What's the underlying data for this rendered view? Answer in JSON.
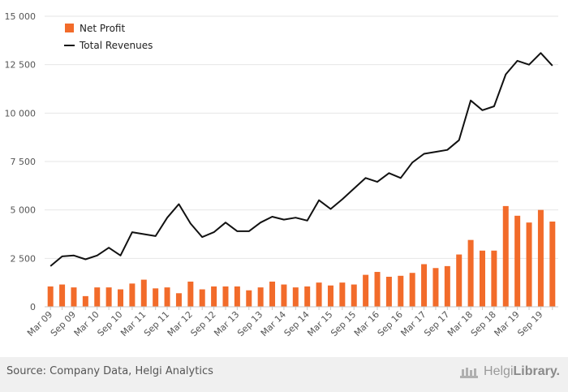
{
  "chart_data": {
    "type": "bar",
    "categories": [
      "Mar 09",
      "Jun 09",
      "Sep 09",
      "Dec 09",
      "Mar 10",
      "Jun 10",
      "Sep 10",
      "Dec 10",
      "Mar 11",
      "Jun 11",
      "Sep 11",
      "Dec 11",
      "Mar 12",
      "Jun 12",
      "Sep 12",
      "Dec 12",
      "Mar 13",
      "Jun 13",
      "Sep 13",
      "Dec 13",
      "Mar 14",
      "Jun 14",
      "Sep 14",
      "Dec 14",
      "Mar 15",
      "Jun 15",
      "Sep 15",
      "Dec 15",
      "Mar 16",
      "Jun 16",
      "Sep 16",
      "Dec 16",
      "Mar 17",
      "Jun 17",
      "Sep 17",
      "Dec 17",
      "Mar 18",
      "Jun 18",
      "Sep 18",
      "Dec 18",
      "Mar 19",
      "Jun 19",
      "Sep 19",
      "Dec 19"
    ],
    "x_tick_labels": [
      "Mar 09",
      "Sep 09",
      "Mar 10",
      "Sep 10",
      "Mar 11",
      "Sep 11",
      "Mar 12",
      "Sep 12",
      "Mar 13",
      "Sep 13",
      "Mar 14",
      "Sep 14",
      "Mar 15",
      "Sep 15",
      "Mar 16",
      "Sep 16",
      "Mar 17",
      "Sep 17",
      "Mar 18",
      "Sep 18",
      "Mar 19",
      "Sep 19"
    ],
    "y_ticks": [
      0,
      2500,
      5000,
      7500,
      10000,
      12500,
      15000
    ],
    "y_tick_labels": [
      "0",
      "2 500",
      "5 000",
      "7 500",
      "10 000",
      "12 500",
      "15 000"
    ],
    "ylim": [
      0,
      15000
    ],
    "grid": "horizontal",
    "legend_position": "top-left",
    "series": [
      {
        "name": "Net Profit",
        "type": "bar",
        "color": "#f26b2a",
        "values": [
          1050,
          1150,
          1000,
          550,
          1000,
          1000,
          900,
          1200,
          1400,
          950,
          1000,
          700,
          1300,
          900,
          1050,
          1050,
          1050,
          850,
          1000,
          1300,
          1150,
          1000,
          1050,
          1250,
          1100,
          1250,
          1150,
          1650,
          1800,
          1550,
          1600,
          1750,
          2200,
          2000,
          2100,
          2700,
          3450,
          2900,
          2900,
          5200,
          4700,
          4350,
          5000,
          4400
        ]
      },
      {
        "name": "Total Revenues",
        "type": "line",
        "color": "#111111",
        "values": [
          2100,
          2600,
          2650,
          2450,
          2650,
          3050,
          2650,
          3850,
          3750,
          3650,
          4600,
          5300,
          4300,
          3600,
          3850,
          4350,
          3900,
          3900,
          4350,
          4650,
          4500,
          4600,
          4450,
          5500,
          5050,
          5550,
          6100,
          6650,
          6450,
          6900,
          6650,
          7450,
          7900,
          8000,
          8100,
          8600,
          10650,
          10150,
          10350,
          12000,
          12700,
          12500,
          13100,
          12450
        ]
      }
    ]
  },
  "footer": {
    "source": "Source: Company Data, Helgi Analytics",
    "brand_light": "Helgi",
    "brand_bold": "Library."
  }
}
